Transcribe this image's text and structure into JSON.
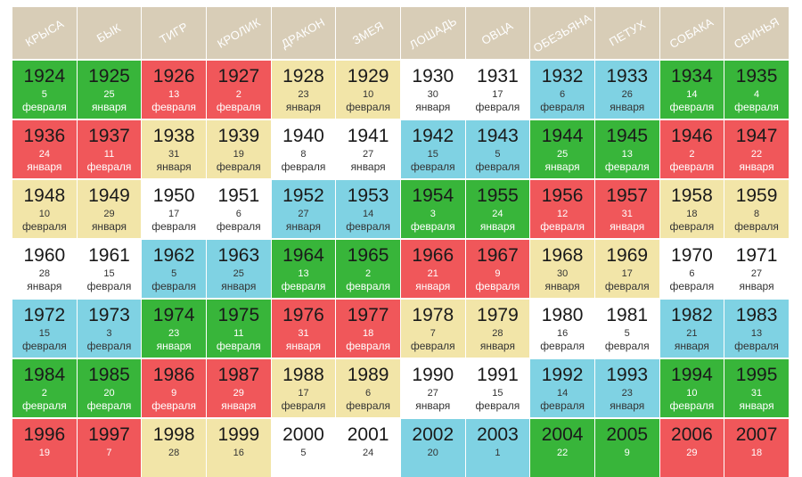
{
  "colors": {
    "green": "#38b53a",
    "red": "#f0575a",
    "yellow": "#f2e5a8",
    "blue": "#7fd2e3",
    "white": "#ffffff",
    "header": "#d8cdb7"
  },
  "header": [
    "КРЫСА",
    "БЫК",
    "ТИГР",
    "КРОЛИК",
    "ДРАКОН",
    "ЗМЕЯ",
    "ЛОШАДЬ",
    "ОВЦА",
    "ОБЕЗЬЯНА",
    "ПЕТУХ",
    "СОБАКА",
    "СВИНЬЯ"
  ],
  "rows": [
    [
      {
        "year": "1924",
        "day": "5",
        "month": "февраля",
        "color": "green"
      },
      {
        "year": "1925",
        "day": "25",
        "month": "января",
        "color": "green"
      },
      {
        "year": "1926",
        "day": "13",
        "month": "февраля",
        "color": "red"
      },
      {
        "year": "1927",
        "day": "2",
        "month": "февраля",
        "color": "red"
      },
      {
        "year": "1928",
        "day": "23",
        "month": "января",
        "color": "yellow"
      },
      {
        "year": "1929",
        "day": "10",
        "month": "февраля",
        "color": "yellow"
      },
      {
        "year": "1930",
        "day": "30",
        "month": "января",
        "color": "white"
      },
      {
        "year": "1931",
        "day": "17",
        "month": "февраля",
        "color": "white"
      },
      {
        "year": "1932",
        "day": "6",
        "month": "февраля",
        "color": "blue"
      },
      {
        "year": "1933",
        "day": "26",
        "month": "января",
        "color": "blue"
      },
      {
        "year": "1934",
        "day": "14",
        "month": "февраля",
        "color": "green"
      },
      {
        "year": "1935",
        "day": "4",
        "month": "февраля",
        "color": "green"
      }
    ],
    [
      {
        "year": "1936",
        "day": "24",
        "month": "января",
        "color": "red"
      },
      {
        "year": "1937",
        "day": "11",
        "month": "февраля",
        "color": "red"
      },
      {
        "year": "1938",
        "day": "31",
        "month": "января",
        "color": "yellow"
      },
      {
        "year": "1939",
        "day": "19",
        "month": "февраля",
        "color": "yellow"
      },
      {
        "year": "1940",
        "day": "8",
        "month": "февраля",
        "color": "white"
      },
      {
        "year": "1941",
        "day": "27",
        "month": "января",
        "color": "white"
      },
      {
        "year": "1942",
        "day": "15",
        "month": "февраля",
        "color": "blue"
      },
      {
        "year": "1943",
        "day": "5",
        "month": "февраля",
        "color": "blue"
      },
      {
        "year": "1944",
        "day": "25",
        "month": "января",
        "color": "green"
      },
      {
        "year": "1945",
        "day": "13",
        "month": "февраля",
        "color": "green"
      },
      {
        "year": "1946",
        "day": "2",
        "month": "февраля",
        "color": "red"
      },
      {
        "year": "1947",
        "day": "22",
        "month": "января",
        "color": "red"
      }
    ],
    [
      {
        "year": "1948",
        "day": "10",
        "month": "февраля",
        "color": "yellow"
      },
      {
        "year": "1949",
        "day": "29",
        "month": "января",
        "color": "yellow"
      },
      {
        "year": "1950",
        "day": "17",
        "month": "февраля",
        "color": "white"
      },
      {
        "year": "1951",
        "day": "6",
        "month": "февраля",
        "color": "white"
      },
      {
        "year": "1952",
        "day": "27",
        "month": "января",
        "color": "blue"
      },
      {
        "year": "1953",
        "day": "14",
        "month": "февраля",
        "color": "blue"
      },
      {
        "year": "1954",
        "day": "3",
        "month": "февраля",
        "color": "green"
      },
      {
        "year": "1955",
        "day": "24",
        "month": "января",
        "color": "green"
      },
      {
        "year": "1956",
        "day": "12",
        "month": "февраля",
        "color": "red"
      },
      {
        "year": "1957",
        "day": "31",
        "month": "января",
        "color": "red"
      },
      {
        "year": "1958",
        "day": "18",
        "month": "февраля",
        "color": "yellow"
      },
      {
        "year": "1959",
        "day": "8",
        "month": "февраля",
        "color": "yellow"
      }
    ],
    [
      {
        "year": "1960",
        "day": "28",
        "month": "января",
        "color": "white"
      },
      {
        "year": "1961",
        "day": "15",
        "month": "февраля",
        "color": "white"
      },
      {
        "year": "1962",
        "day": "5",
        "month": "февраля",
        "color": "blue"
      },
      {
        "year": "1963",
        "day": "25",
        "month": "января",
        "color": "blue"
      },
      {
        "year": "1964",
        "day": "13",
        "month": "февраля",
        "color": "green"
      },
      {
        "year": "1965",
        "day": "2",
        "month": "февраля",
        "color": "green"
      },
      {
        "year": "1966",
        "day": "21",
        "month": "января",
        "color": "red"
      },
      {
        "year": "1967",
        "day": "9",
        "month": "февраля",
        "color": "red"
      },
      {
        "year": "1968",
        "day": "30",
        "month": "января",
        "color": "yellow"
      },
      {
        "year": "1969",
        "day": "17",
        "month": "февраля",
        "color": "yellow"
      },
      {
        "year": "1970",
        "day": "6",
        "month": "февраля",
        "color": "white"
      },
      {
        "year": "1971",
        "day": "27",
        "month": "января",
        "color": "white"
      }
    ],
    [
      {
        "year": "1972",
        "day": "15",
        "month": "февраля",
        "color": "blue"
      },
      {
        "year": "1973",
        "day": "3",
        "month": "февраля",
        "color": "blue"
      },
      {
        "year": "1974",
        "day": "23",
        "month": "января",
        "color": "green"
      },
      {
        "year": "1975",
        "day": "11",
        "month": "февраля",
        "color": "green"
      },
      {
        "year": "1976",
        "day": "31",
        "month": "января",
        "color": "red"
      },
      {
        "year": "1977",
        "day": "18",
        "month": "февраля",
        "color": "red"
      },
      {
        "year": "1978",
        "day": "7",
        "month": "февраля",
        "color": "yellow"
      },
      {
        "year": "1979",
        "day": "28",
        "month": "января",
        "color": "yellow"
      },
      {
        "year": "1980",
        "day": "16",
        "month": "февраля",
        "color": "white"
      },
      {
        "year": "1981",
        "day": "5",
        "month": "февраля",
        "color": "white"
      },
      {
        "year": "1982",
        "day": "21",
        "month": "января",
        "color": "blue"
      },
      {
        "year": "1983",
        "day": "13",
        "month": "февраля",
        "color": "blue"
      }
    ],
    [
      {
        "year": "1984",
        "day": "2",
        "month": "февраля",
        "color": "green"
      },
      {
        "year": "1985",
        "day": "20",
        "month": "февраля",
        "color": "green"
      },
      {
        "year": "1986",
        "day": "9",
        "month": "февраля",
        "color": "red"
      },
      {
        "year": "1987",
        "day": "29",
        "month": "января",
        "color": "red"
      },
      {
        "year": "1988",
        "day": "17",
        "month": "февраля",
        "color": "yellow"
      },
      {
        "year": "1989",
        "day": "6",
        "month": "февраля",
        "color": "yellow"
      },
      {
        "year": "1990",
        "day": "27",
        "month": "января",
        "color": "white"
      },
      {
        "year": "1991",
        "day": "15",
        "month": "февраля",
        "color": "white"
      },
      {
        "year": "1992",
        "day": "14",
        "month": "февраля",
        "color": "blue"
      },
      {
        "year": "1993",
        "day": "23",
        "month": "января",
        "color": "blue"
      },
      {
        "year": "1994",
        "day": "10",
        "month": "февраля",
        "color": "green"
      },
      {
        "year": "1995",
        "day": "31",
        "month": "января",
        "color": "green"
      }
    ],
    [
      {
        "year": "1996",
        "day": "19",
        "month": "",
        "color": "red"
      },
      {
        "year": "1997",
        "day": "7",
        "month": "",
        "color": "red"
      },
      {
        "year": "1998",
        "day": "28",
        "month": "",
        "color": "yellow"
      },
      {
        "year": "1999",
        "day": "16",
        "month": "",
        "color": "yellow"
      },
      {
        "year": "2000",
        "day": "5",
        "month": "",
        "color": "white"
      },
      {
        "year": "2001",
        "day": "24",
        "month": "",
        "color": "white"
      },
      {
        "year": "2002",
        "day": "20",
        "month": "",
        "color": "blue"
      },
      {
        "year": "2003",
        "day": "1",
        "month": "",
        "color": "blue"
      },
      {
        "year": "2004",
        "day": "22",
        "month": "",
        "color": "green"
      },
      {
        "year": "2005",
        "day": "9",
        "month": "",
        "color": "green"
      },
      {
        "year": "2006",
        "day": "29",
        "month": "",
        "color": "red"
      },
      {
        "year": "2007",
        "day": "18",
        "month": "",
        "color": "red"
      }
    ]
  ]
}
